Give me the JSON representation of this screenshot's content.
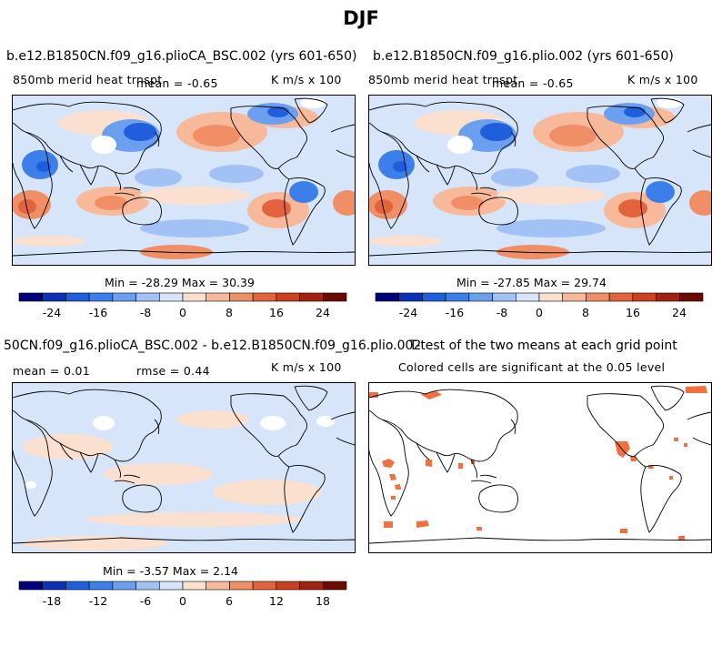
{
  "figure_title": "DJF",
  "units": "K m/s x 100",
  "panels": {
    "top_left": {
      "title": "b.e12.B1850CN.f09_g16.plioCA_BSC.002 (yrs 601-650)",
      "field_label": "850mb merid heat trnspt",
      "mean_text": "mean =   -0.65",
      "units": "K m/s x 100",
      "min_max": "Min = -28.29 Max =  30.39"
    },
    "top_right": {
      "title": "b.e12.B1850CN.f09_g16.plio.002 (yrs 601-650)",
      "field_label": "850mb merid heat trnspt",
      "mean_text": "mean =   -0.65",
      "units": "K m/s x 100",
      "min_max": "Min = -27.85 Max =  29.74"
    },
    "bottom_left": {
      "title": "50CN.f09_g16.plioCA_BSC.002 - b.e12.B1850CN.f09_g16.plio.002",
      "mean_text": "mean =    0.01",
      "rmse_text": "rmse =    0.44",
      "units": "K m/s x 100",
      "min_max": "Min =  -3.57 Max =   2.14"
    },
    "bottom_right": {
      "title": "T-test of the two means at each grid point",
      "subtitle": "Colored cells are significant at the 0.05 level"
    }
  },
  "colors": {
    "scale": [
      "#00007f",
      "#0d30b8",
      "#1f5fde",
      "#3d7fea",
      "#6d9ff0",
      "#a2c2f5",
      "#d7e5fb",
      "#fbe0cf",
      "#f7b99a",
      "#f08f66",
      "#e3633d",
      "#c94120",
      "#a12410",
      "#6b0a00"
    ],
    "significance": "#f0703f"
  },
  "chart_data": [
    {
      "type": "heatmap",
      "name": "top_left",
      "title": "b.e12.B1850CN.f09_g16.plioCA_BSC.002 (yrs 601-650)",
      "variable": "850mb merid heat trnspt",
      "mean": -0.65,
      "min": -28.29,
      "max": 30.39,
      "colorbar_ticks": [
        "-24",
        "-16",
        "-8",
        "0",
        "8",
        "16",
        "24"
      ]
    },
    {
      "type": "heatmap",
      "name": "top_right",
      "title": "b.e12.B1850CN.f09_g16.plio.002 (yrs 601-650)",
      "variable": "850mb merid heat trnspt",
      "mean": -0.65,
      "min": -27.85,
      "max": 29.74,
      "colorbar_ticks": [
        "-24",
        "-16",
        "-8",
        "0",
        "8",
        "16",
        "24"
      ]
    },
    {
      "type": "heatmap",
      "name": "difference",
      "mean": 0.01,
      "rmse": 0.44,
      "min": -3.57,
      "max": 2.14,
      "colorbar_ticks": [
        "-18",
        "-12",
        "-6",
        "0",
        "6",
        "12",
        "18"
      ]
    },
    {
      "type": "heatmap",
      "name": "t_test",
      "title": "T-test of the two means at each grid point",
      "significance_level": 0.05
    }
  ]
}
